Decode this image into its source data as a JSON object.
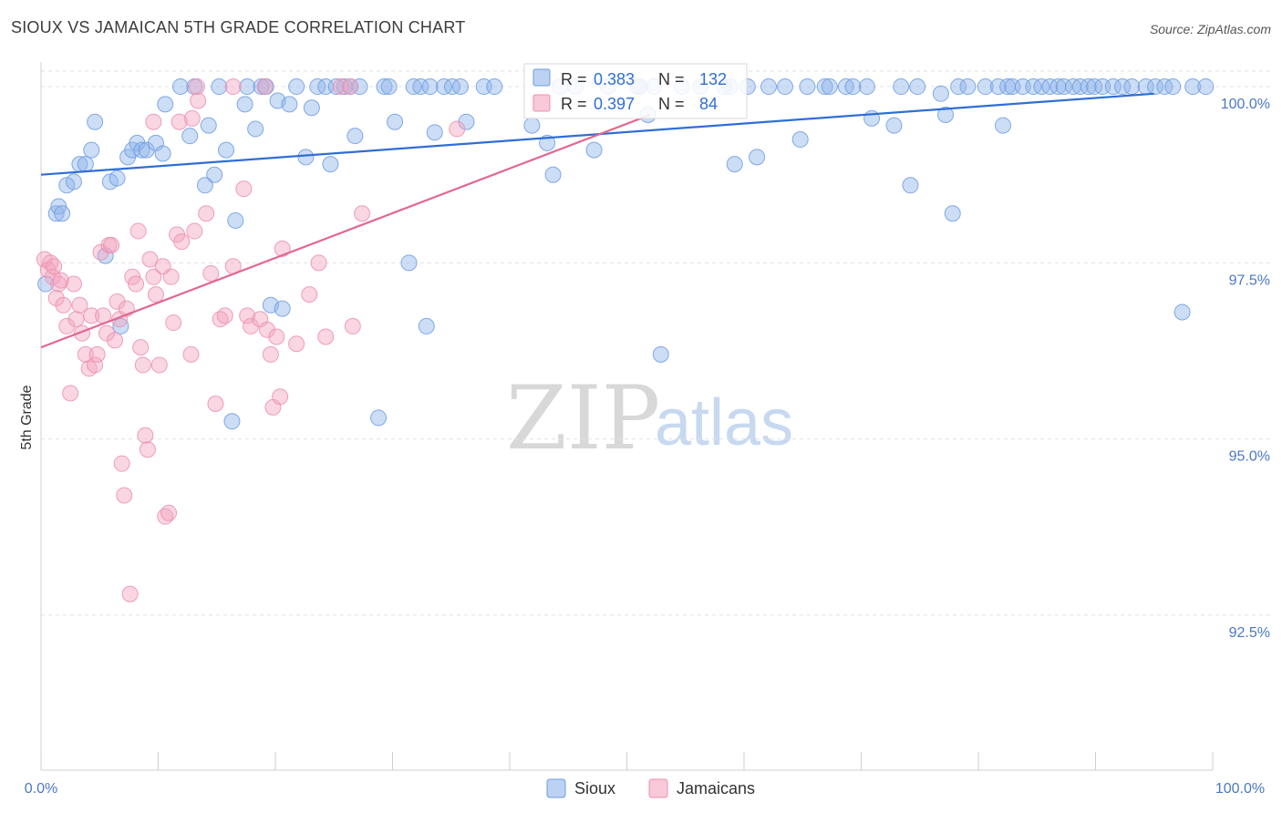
{
  "header": {
    "title": "SIOUX VS JAMAICAN 5TH GRADE CORRELATION CHART",
    "source": "Source: ZipAtlas.com"
  },
  "watermark": {
    "zip": "ZIP",
    "atlas": "atlas"
  },
  "stats": [
    {
      "r_label": "R =",
      "r_value": "0.383",
      "n_label": "N =",
      "n_value": "132",
      "color": "#8fb4ea"
    },
    {
      "r_label": "R =",
      "r_value": "0.397",
      "n_label": "N =",
      "n_value": "84",
      "color": "#f2a5bf"
    }
  ],
  "legend": [
    {
      "label": "Sioux",
      "color": "#8fb4ea"
    },
    {
      "label": "Jamaicans",
      "color": "#f2a5bf"
    }
  ],
  "colors": {
    "sioux_fill": "#8fb4ea",
    "sioux_stroke": "#6d9ce0",
    "sioux_line": "#2f6ed6",
    "jam_fill": "#f2a5bf",
    "jam_stroke": "#ec8fb0",
    "jam_line": "#e2688f",
    "grid": "#e2e2e2",
    "tick_text": "#4a78c5"
  },
  "chart_data": {
    "type": "scatter",
    "title": "SIOUX VS JAMAICAN 5TH GRADE CORRELATION CHART",
    "xlabel": "",
    "ylabel": "5th Grade",
    "xlim": [
      0,
      100
    ],
    "ylim": [
      90.3,
      100.35
    ],
    "x_tick_labels": [
      "0.0%",
      "100.0%"
    ],
    "y_ticks": [
      92.5,
      95.0,
      97.5,
      100.0
    ],
    "y_tick_labels": [
      "92.5%",
      "95.0%",
      "97.5%",
      "100.0%"
    ],
    "grid": true,
    "legend_position": "bottom-center",
    "series": [
      {
        "name": "Sioux",
        "r": 0.383,
        "n": 132,
        "trend": [
          [
            0,
            98.75
          ],
          [
            95,
            99.9
          ]
        ],
        "points": [
          [
            0.4,
            97.2
          ],
          [
            1.3,
            98.2
          ],
          [
            1.5,
            98.3
          ],
          [
            1.8,
            98.2
          ],
          [
            2.2,
            98.6
          ],
          [
            2.8,
            98.65
          ],
          [
            3.3,
            98.9
          ],
          [
            3.8,
            98.9
          ],
          [
            4.3,
            99.1
          ],
          [
            4.6,
            99.5
          ],
          [
            5.5,
            97.6
          ],
          [
            5.9,
            98.65
          ],
          [
            6.5,
            98.7
          ],
          [
            6.8,
            96.6
          ],
          [
            7.4,
            99.0
          ],
          [
            7.8,
            99.1
          ],
          [
            8.2,
            99.2
          ],
          [
            8.6,
            99.1
          ],
          [
            9.0,
            99.1
          ],
          [
            9.8,
            99.2
          ],
          [
            10.4,
            99.05
          ],
          [
            10.6,
            99.75
          ],
          [
            11.9,
            100.0
          ],
          [
            12.7,
            99.3
          ],
          [
            13.1,
            100.0
          ],
          [
            14.0,
            98.6
          ],
          [
            14.3,
            99.45
          ],
          [
            14.8,
            98.75
          ],
          [
            15.2,
            100.0
          ],
          [
            15.8,
            99.1
          ],
          [
            16.3,
            95.25
          ],
          [
            16.6,
            98.1
          ],
          [
            17.4,
            99.75
          ],
          [
            17.6,
            100.0
          ],
          [
            18.3,
            99.4
          ],
          [
            18.8,
            100.0
          ],
          [
            19.2,
            100.0
          ],
          [
            19.6,
            96.9
          ],
          [
            20.2,
            99.8
          ],
          [
            20.6,
            96.85
          ],
          [
            21.2,
            99.75
          ],
          [
            21.8,
            100.0
          ],
          [
            22.6,
            99.0
          ],
          [
            23.1,
            99.7
          ],
          [
            23.6,
            100.0
          ],
          [
            24.3,
            100.0
          ],
          [
            24.7,
            98.9
          ],
          [
            25.2,
            100.0
          ],
          [
            25.9,
            100.0
          ],
          [
            26.4,
            100.0
          ],
          [
            26.8,
            99.3
          ],
          [
            27.2,
            100.0
          ],
          [
            28.8,
            95.3
          ],
          [
            29.3,
            100.0
          ],
          [
            29.7,
            100.0
          ],
          [
            30.2,
            99.5
          ],
          [
            31.4,
            97.5
          ],
          [
            31.8,
            100.0
          ],
          [
            32.4,
            100.0
          ],
          [
            32.9,
            96.6
          ],
          [
            33.2,
            100.0
          ],
          [
            33.6,
            99.35
          ],
          [
            34.4,
            100.0
          ],
          [
            35.1,
            100.0
          ],
          [
            35.8,
            100.0
          ],
          [
            36.3,
            99.5
          ],
          [
            37.8,
            100.0
          ],
          [
            38.7,
            100.0
          ],
          [
            41.9,
            99.45
          ],
          [
            43.2,
            99.2
          ],
          [
            43.7,
            98.75
          ],
          [
            44.3,
            100.0
          ],
          [
            45.6,
            100.0
          ],
          [
            47.2,
            99.1
          ],
          [
            48.4,
            100.0
          ],
          [
            51.1,
            100.0
          ],
          [
            51.8,
            99.6
          ],
          [
            52.3,
            100.0
          ],
          [
            52.9,
            96.2
          ],
          [
            54.7,
            100.0
          ],
          [
            56.3,
            100.0
          ],
          [
            58.3,
            100.0
          ],
          [
            59.2,
            98.9
          ],
          [
            60.3,
            100.0
          ],
          [
            61.1,
            99.0
          ],
          [
            62.1,
            100.0
          ],
          [
            63.5,
            100.0
          ],
          [
            64.8,
            99.25
          ],
          [
            65.4,
            100.0
          ],
          [
            66.9,
            100.0
          ],
          [
            67.3,
            100.0
          ],
          [
            68.7,
            100.0
          ],
          [
            69.3,
            100.0
          ],
          [
            70.5,
            100.0
          ],
          [
            70.9,
            99.55
          ],
          [
            72.8,
            99.45
          ],
          [
            73.4,
            100.0
          ],
          [
            74.2,
            98.6
          ],
          [
            74.8,
            100.0
          ],
          [
            76.8,
            99.9
          ],
          [
            77.2,
            99.6
          ],
          [
            77.8,
            98.2
          ],
          [
            78.3,
            100.0
          ],
          [
            79.1,
            100.0
          ],
          [
            80.6,
            100.0
          ],
          [
            81.7,
            100.0
          ],
          [
            82.1,
            99.45
          ],
          [
            82.5,
            100.0
          ],
          [
            82.9,
            100.0
          ],
          [
            83.8,
            100.0
          ],
          [
            84.7,
            100.0
          ],
          [
            85.4,
            100.0
          ],
          [
            86.1,
            100.0
          ],
          [
            86.8,
            100.0
          ],
          [
            87.3,
            100.0
          ],
          [
            88.1,
            100.0
          ],
          [
            88.7,
            100.0
          ],
          [
            89.4,
            100.0
          ],
          [
            89.9,
            100.0
          ],
          [
            90.6,
            100.0
          ],
          [
            91.5,
            100.0
          ],
          [
            92.3,
            100.0
          ],
          [
            93.1,
            100.0
          ],
          [
            94.3,
            100.0
          ],
          [
            95.1,
            100.0
          ],
          [
            95.9,
            100.0
          ],
          [
            96.6,
            100.0
          ],
          [
            97.4,
            96.8
          ],
          [
            98.3,
            100.0
          ],
          [
            99.4,
            100.0
          ],
          [
            50.9,
            100.0
          ],
          [
            58.8,
            100.0
          ]
        ]
      },
      {
        "name": "Jamaicans",
        "r": 0.397,
        "n": 84,
        "trend": [
          [
            0,
            96.3
          ],
          [
            52,
            99.6
          ]
        ],
        "points": [
          [
            0.3,
            97.55
          ],
          [
            0.6,
            97.4
          ],
          [
            0.8,
            97.5
          ],
          [
            1.0,
            97.3
          ],
          [
            1.1,
            97.45
          ],
          [
            1.3,
            97.0
          ],
          [
            1.5,
            97.2
          ],
          [
            1.7,
            97.25
          ],
          [
            1.9,
            96.9
          ],
          [
            2.2,
            96.6
          ],
          [
            2.5,
            95.65
          ],
          [
            2.8,
            97.2
          ],
          [
            3.0,
            96.7
          ],
          [
            3.3,
            96.9
          ],
          [
            3.5,
            96.5
          ],
          [
            3.8,
            96.2
          ],
          [
            4.1,
            96.0
          ],
          [
            4.3,
            96.75
          ],
          [
            4.6,
            96.05
          ],
          [
            4.8,
            96.2
          ],
          [
            5.1,
            97.65
          ],
          [
            5.3,
            96.75
          ],
          [
            5.6,
            96.5
          ],
          [
            5.8,
            97.75
          ],
          [
            6.0,
            97.75
          ],
          [
            6.3,
            96.4
          ],
          [
            6.5,
            96.95
          ],
          [
            6.7,
            96.7
          ],
          [
            6.9,
            94.65
          ],
          [
            7.1,
            94.2
          ],
          [
            7.3,
            96.85
          ],
          [
            7.6,
            92.8
          ],
          [
            7.8,
            97.3
          ],
          [
            8.1,
            97.2
          ],
          [
            8.3,
            97.95
          ],
          [
            8.5,
            96.3
          ],
          [
            8.7,
            96.05
          ],
          [
            8.9,
            95.05
          ],
          [
            9.1,
            94.85
          ],
          [
            9.3,
            97.55
          ],
          [
            9.6,
            97.3
          ],
          [
            9.8,
            97.05
          ],
          [
            10.1,
            96.05
          ],
          [
            10.4,
            97.45
          ],
          [
            10.6,
            93.9
          ],
          [
            10.9,
            93.95
          ],
          [
            11.1,
            97.3
          ],
          [
            11.3,
            96.65
          ],
          [
            11.6,
            97.9
          ],
          [
            12.0,
            97.8
          ],
          [
            12.8,
            96.2
          ],
          [
            13.1,
            97.95
          ],
          [
            13.4,
            99.8
          ],
          [
            14.1,
            98.2
          ],
          [
            14.5,
            97.35
          ],
          [
            14.9,
            95.5
          ],
          [
            15.3,
            96.7
          ],
          [
            15.7,
            96.75
          ],
          [
            16.4,
            97.45
          ],
          [
            17.3,
            98.55
          ],
          [
            17.6,
            96.75
          ],
          [
            17.9,
            96.6
          ],
          [
            18.7,
            96.7
          ],
          [
            19.3,
            96.55
          ],
          [
            19.6,
            96.2
          ],
          [
            19.8,
            95.45
          ],
          [
            20.1,
            96.45
          ],
          [
            20.4,
            95.6
          ],
          [
            20.6,
            97.7
          ],
          [
            21.8,
            96.35
          ],
          [
            22.9,
            97.05
          ],
          [
            23.7,
            97.5
          ],
          [
            24.3,
            96.45
          ],
          [
            25.6,
            100.0
          ],
          [
            26.4,
            100.0
          ],
          [
            26.6,
            96.6
          ],
          [
            27.4,
            98.2
          ],
          [
            35.5,
            99.4
          ],
          [
            12.9,
            99.55
          ],
          [
            13.3,
            100.0
          ],
          [
            9.6,
            99.5
          ],
          [
            11.8,
            99.5
          ],
          [
            16.4,
            100.0
          ],
          [
            19.1,
            100.0
          ]
        ]
      }
    ]
  }
}
